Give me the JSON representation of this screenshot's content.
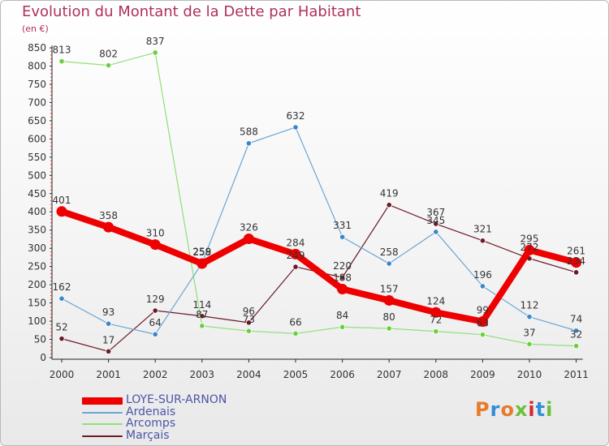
{
  "header": {
    "title": "Evolution du Montant de la Dette par Habitant",
    "subtitle": "(en €)"
  },
  "logo": {
    "text": "Proxiti",
    "colors": [
      "#e87b2b",
      "#2f8fd8",
      "#e87b2b",
      "#6bbf3a",
      "#d8262f",
      "#2f8fd8",
      "#6bbf3a"
    ]
  },
  "chart_data": {
    "type": "line",
    "title": "Evolution du Montant de la Dette par Habitant",
    "subtitle": "(en €)",
    "categories": [
      "2000",
      "2001",
      "2002",
      "2003",
      "2004",
      "2005",
      "2006",
      "2007",
      "2008",
      "2009",
      "2010",
      "2011"
    ],
    "ylim": [
      0,
      850
    ],
    "yticks": [
      0,
      50,
      100,
      150,
      200,
      250,
      300,
      350,
      400,
      450,
      500,
      550,
      600,
      650,
      700,
      750,
      800,
      850
    ],
    "grid": false,
    "legend_position": "bottom-left",
    "series": [
      {
        "name": "Marçais",
        "color": "#6b1a26",
        "marker": "#6b1a26",
        "width": 1.2,
        "r": 3.2,
        "values": [
          52,
          17,
          129,
          114,
          96,
          249,
          220,
          419,
          367,
          321,
          272,
          234
        ],
        "labels": [
          "52",
          "17",
          "129",
          "114",
          "96",
          "249",
          "220",
          "419",
          "367",
          "321",
          "272",
          "234"
        ]
      },
      {
        "name": "Arcomps",
        "color": "#8fe07a",
        "marker": "#6bcf3c",
        "width": 1.2,
        "r": 3.2,
        "values": [
          813,
          802,
          837,
          87,
          73,
          66,
          84,
          80,
          72,
          63,
          37,
          32
        ],
        "labels": [
          "813",
          "802",
          "837",
          "87",
          "73",
          "66",
          "84",
          "80",
          "72",
          "63",
          "37",
          "32"
        ]
      },
      {
        "name": "Ardenais",
        "color": "#6aa7d6",
        "marker": "#3a86c8",
        "width": 1.2,
        "r": 3.2,
        "values": [
          162,
          93,
          64,
          259,
          588,
          632,
          331,
          258,
          345,
          196,
          112,
          74
        ],
        "labels": [
          "162",
          "93",
          "64",
          "259",
          "588",
          "632",
          "331",
          "258",
          "345",
          "196",
          "112",
          "74"
        ]
      },
      {
        "name": "LOYE-SUR-ARNON",
        "color": "#ee0000",
        "marker": "#ee0000",
        "width": 8,
        "r": 6.5,
        "values": [
          401,
          358,
          310,
          258,
          326,
          284,
          188,
          157,
          124,
          99,
          295,
          261
        ],
        "labels": [
          "401",
          "358",
          "310",
          "258",
          "326",
          "284",
          "188",
          "157",
          "124",
          "99",
          "295",
          "261"
        ]
      }
    ],
    "legend": [
      {
        "name": "LOYE-SUR-ARNON",
        "color": "#ee0000",
        "thickness": 9
      },
      {
        "name": "Ardenais",
        "color": "#6aa7d6",
        "thickness": 2
      },
      {
        "name": "Arcomps",
        "color": "#8fe07a",
        "thickness": 2
      },
      {
        "name": "Marçais",
        "color": "#6b1a26",
        "thickness": 2
      }
    ]
  }
}
